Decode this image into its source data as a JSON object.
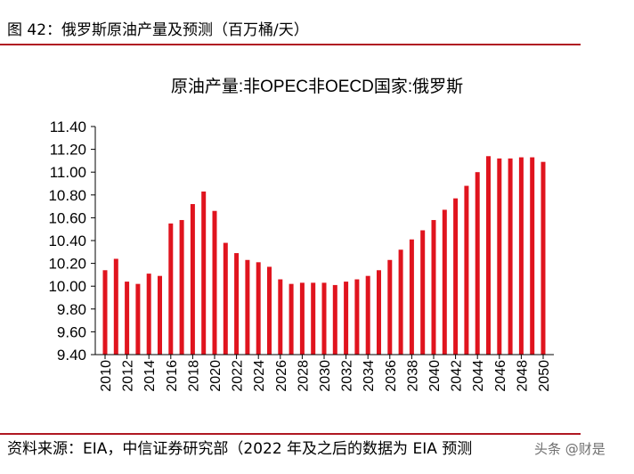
{
  "figure": {
    "title": "图 42：俄罗斯原油产量及预测（百万桶/天）",
    "source": "资料来源：EIA，中信证券研究部（2022 年及之后的数据为 EIA 预测",
    "watermark": "头条 @财是"
  },
  "colors": {
    "bar": "#e0141e",
    "rule": "#b01822"
  },
  "chart_data": {
    "type": "bar",
    "title": "原油产量:非OPEC非OECD国家:俄罗斯",
    "xlabel": "",
    "ylabel": "",
    "ylim": [
      9.4,
      11.4
    ],
    "yticks": [
      "11.40",
      "11.20",
      "11.00",
      "10.80",
      "10.60",
      "10.40",
      "10.20",
      "10.00",
      "9.80",
      "9.60",
      "9.40"
    ],
    "xtick_labels": [
      "2010",
      "2012",
      "2014",
      "2016",
      "2018",
      "2020",
      "2022",
      "2024",
      "2026",
      "2028",
      "2030",
      "2032",
      "2034",
      "2036",
      "2038",
      "2040",
      "2042",
      "2044",
      "2046",
      "2048",
      "2050"
    ],
    "categories": [
      2010,
      2011,
      2012,
      2013,
      2014,
      2015,
      2016,
      2017,
      2018,
      2019,
      2020,
      2021,
      2022,
      2023,
      2024,
      2025,
      2026,
      2027,
      2028,
      2029,
      2030,
      2031,
      2032,
      2033,
      2034,
      2035,
      2036,
      2037,
      2038,
      2039,
      2040,
      2041,
      2042,
      2043,
      2044,
      2045,
      2046,
      2047,
      2048,
      2049,
      2050
    ],
    "values": [
      10.14,
      10.24,
      10.04,
      10.02,
      10.11,
      10.09,
      10.55,
      10.58,
      10.72,
      10.83,
      10.66,
      10.38,
      10.29,
      10.23,
      10.21,
      10.17,
      10.06,
      10.02,
      10.03,
      10.03,
      10.03,
      10.01,
      10.04,
      10.06,
      10.09,
      10.14,
      10.23,
      10.32,
      10.41,
      10.49,
      10.58,
      10.67,
      10.77,
      10.88,
      11.0,
      11.14,
      11.12,
      11.12,
      11.13,
      11.13,
      11.09
    ],
    "grid": false,
    "legend": "none"
  }
}
